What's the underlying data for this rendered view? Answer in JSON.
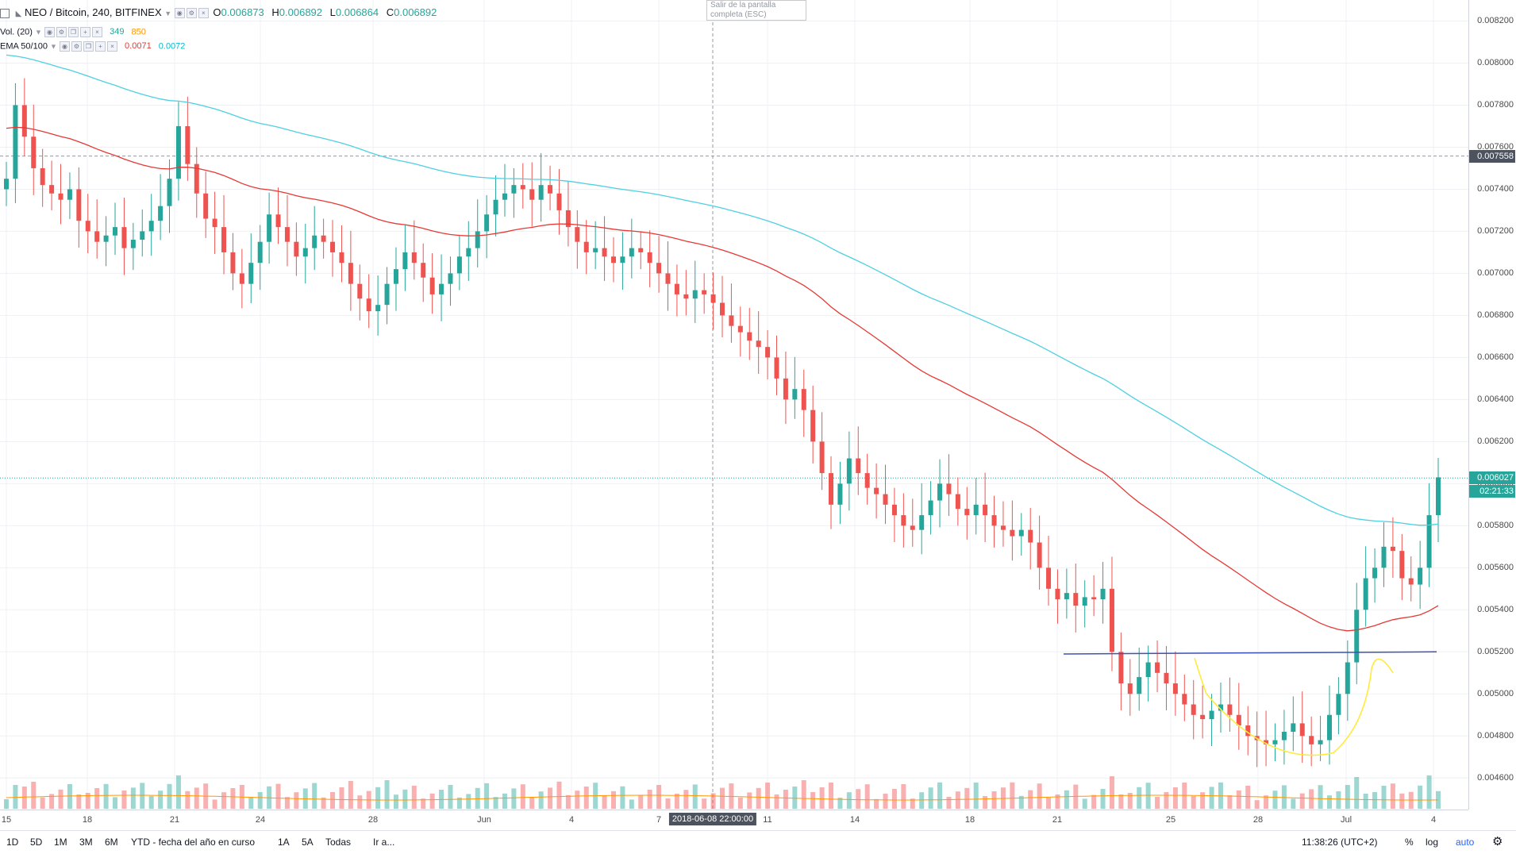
{
  "legend": {
    "symbol": "NEO / Bitcoin, 240, BITFINEX",
    "o_label": "O",
    "o_value": "0.006873",
    "h_label": "H",
    "h_value": "0.006892",
    "l_label": "L",
    "l_value": "0.006864",
    "c_label": "C",
    "c_value": "0.006892",
    "vol_label": "Vol. (20)",
    "vol_value1": "349",
    "vol_value2": "850",
    "ema_label": "EMA 50/100",
    "ema50_value": "0.0071",
    "ema100_value": "0.0072"
  },
  "tooltip": {
    "line1": "Salir de la pantalla",
    "line2": "completa (ESC)"
  },
  "price_axis": {
    "ticks": [
      "0.008200",
      "0.008000",
      "0.007800",
      "0.007600",
      "0.007400",
      "0.007200",
      "0.007000",
      "0.006800",
      "0.006600",
      "0.006400",
      "0.006200",
      "0.006000",
      "0.005800",
      "0.005600",
      "0.005400",
      "0.005200",
      "0.005000",
      "0.004800",
      "0.004600"
    ],
    "crosshair_price": "0.007558",
    "last_price": "0.006027",
    "countdown": "02:21:33"
  },
  "time_axis": {
    "ticks": [
      "15",
      "18",
      "21",
      "24",
      "28",
      "Jun",
      "4",
      "7",
      "11",
      "14",
      "18",
      "21",
      "25",
      "28",
      "Jul",
      "4"
    ],
    "crosshair_time": "2018-06-08 22:00:00"
  },
  "bottom_bar": {
    "ranges": [
      "1D",
      "5D",
      "1M",
      "3M",
      "6M",
      "YTD - fecha del año en curso",
      "1A",
      "5A",
      "Todas"
    ],
    "goto": "Ir a...",
    "clock": "11:38:26 (UTC+2)",
    "percent": "%",
    "log": "log",
    "auto": "auto"
  },
  "colors": {
    "up": "#26a69a",
    "down": "#ef5350",
    "ema50": "#e53935",
    "ema100": "#4dd0e1",
    "trendline": "#3f51b5",
    "annotation": "#ffeb3b",
    "crosshair_badge": "#4c525e",
    "last_price_badge": "#26a69a"
  },
  "chart_data": {
    "type": "candlestick",
    "title": "NEO / Bitcoin, 240, BITFINEX",
    "ylim": [
      0.00445,
      0.0083
    ],
    "close_series": [
      0.00745,
      0.0078,
      0.00765,
      0.0075,
      0.00742,
      0.00738,
      0.00735,
      0.0074,
      0.00725,
      0.0072,
      0.00715,
      0.00718,
      0.00722,
      0.00712,
      0.00716,
      0.0072,
      0.00725,
      0.00732,
      0.00745,
      0.0077,
      0.00752,
      0.00738,
      0.00726,
      0.00722,
      0.0071,
      0.007,
      0.00695,
      0.00705,
      0.00715,
      0.00728,
      0.00722,
      0.00715,
      0.00708,
      0.00712,
      0.00718,
      0.00715,
      0.0071,
      0.00705,
      0.00695,
      0.00688,
      0.00682,
      0.00685,
      0.00695,
      0.00702,
      0.0071,
      0.00705,
      0.00698,
      0.0069,
      0.00695,
      0.007,
      0.00708,
      0.00712,
      0.0072,
      0.00728,
      0.00735,
      0.00738,
      0.00742,
      0.0074,
      0.00735,
      0.00742,
      0.00738,
      0.0073,
      0.00722,
      0.00715,
      0.0071,
      0.00712,
      0.00708,
      0.00705,
      0.00708,
      0.00712,
      0.0071,
      0.00705,
      0.007,
      0.00695,
      0.0069,
      0.00688,
      0.00692,
      0.0069,
      0.00686,
      0.0068,
      0.00675,
      0.00672,
      0.00668,
      0.00665,
      0.0066,
      0.0065,
      0.0064,
      0.00645,
      0.00635,
      0.0062,
      0.00605,
      0.0059,
      0.006,
      0.00612,
      0.00605,
      0.00598,
      0.00595,
      0.0059,
      0.00585,
      0.0058,
      0.00578,
      0.00585,
      0.00592,
      0.006,
      0.00595,
      0.00588,
      0.00585,
      0.0059,
      0.00585,
      0.0058,
      0.00578,
      0.00575,
      0.00578,
      0.00572,
      0.0056,
      0.0055,
      0.00545,
      0.00548,
      0.00542,
      0.00546,
      0.00545,
      0.0055,
      0.0052,
      0.00505,
      0.005,
      0.00508,
      0.00515,
      0.0051,
      0.00505,
      0.005,
      0.00495,
      0.0049,
      0.00488,
      0.00492,
      0.00495,
      0.0049,
      0.00485,
      0.0048,
      0.00478,
      0.00476,
      0.00478,
      0.00482,
      0.00486,
      0.0048,
      0.00476,
      0.00478,
      0.0049,
      0.005,
      0.00515,
      0.0054,
      0.00555,
      0.0056,
      0.0057,
      0.00568,
      0.00555,
      0.00552,
      0.0056,
      0.00585,
      0.00603
    ],
    "ema50_last": 0.0071,
    "ema100_last": 0.0072
  }
}
